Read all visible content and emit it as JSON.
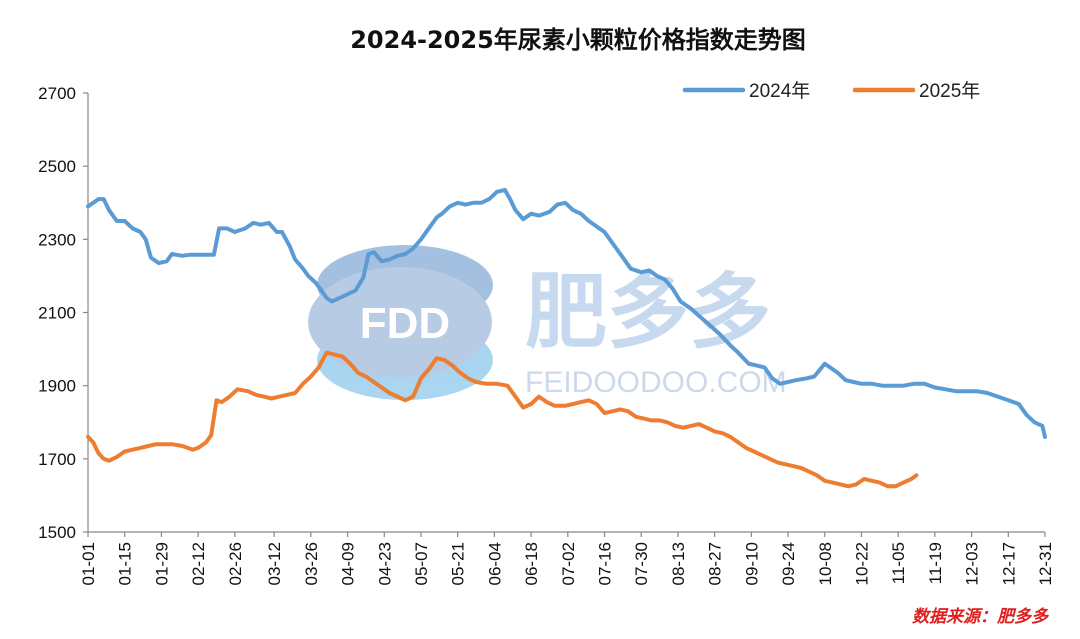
{
  "chart_data": {
    "type": "line",
    "title": "2024-2025年尿素小颗粒价格指数走势图",
    "ylim": [
      1500,
      2700
    ],
    "yticks": [
      "1500",
      "1700",
      "1900",
      "2100",
      "2300",
      "2500",
      "2700"
    ],
    "xticks": [
      "01-01",
      "01-15",
      "01-29",
      "02-12",
      "02-26",
      "03-12",
      "03-26",
      "04-09",
      "04-23",
      "05-07",
      "05-21",
      "06-04",
      "06-18",
      "07-02",
      "07-16",
      "07-30",
      "08-13",
      "08-27",
      "09-10",
      "09-24",
      "10-08",
      "10-22",
      "11-05",
      "11-19",
      "12-03",
      "12-17",
      "12-31"
    ],
    "legend_position": "top-right",
    "grid": false,
    "series": [
      {
        "name": "2024年",
        "color": "#5b9bd5",
        "x": [
          "01-01",
          "01-03",
          "01-05",
          "01-07",
          "01-09",
          "01-12",
          "01-15",
          "01-18",
          "01-21",
          "01-23",
          "01-25",
          "01-28",
          "01-31",
          "02-02",
          "02-06",
          "02-09",
          "02-12",
          "02-15",
          "02-18",
          "02-20",
          "02-23",
          "02-26",
          "03-01",
          "03-04",
          "03-07",
          "03-10",
          "03-13",
          "03-15",
          "03-18",
          "03-20",
          "03-23",
          "03-25",
          "03-28",
          "04-01",
          "04-03",
          "04-06",
          "04-09",
          "04-12",
          "04-15",
          "04-17",
          "04-19",
          "04-22",
          "04-25",
          "04-28",
          "05-01",
          "05-04",
          "05-07",
          "05-10",
          "05-13",
          "05-15",
          "05-18",
          "05-21",
          "05-24",
          "05-27",
          "05-30",
          "06-02",
          "06-05",
          "06-08",
          "06-10",
          "06-12",
          "06-15",
          "06-18",
          "06-21",
          "06-25",
          "06-28",
          "07-01",
          "07-04",
          "07-07",
          "07-10",
          "07-13",
          "07-16",
          "07-19",
          "07-23",
          "07-26",
          "07-30",
          "08-02",
          "08-05",
          "08-08",
          "08-11",
          "08-14",
          "08-18",
          "08-22",
          "08-26",
          "08-29",
          "09-02",
          "09-05",
          "09-09",
          "09-12",
          "09-15",
          "09-18",
          "09-21",
          "09-24",
          "09-27",
          "10-01",
          "10-04",
          "10-08",
          "10-10",
          "10-13",
          "10-16",
          "10-19",
          "10-22",
          "10-26",
          "10-30",
          "11-03",
          "11-07",
          "11-11",
          "11-15",
          "11-19",
          "11-23",
          "11-27",
          "12-01",
          "12-05",
          "12-09",
          "12-13",
          "12-17",
          "12-21",
          "12-24",
          "12-27",
          "12-30",
          "12-31"
        ],
        "values": [
          2390,
          2400,
          2410,
          2410,
          2380,
          2350,
          2350,
          2330,
          2320,
          2300,
          2250,
          2235,
          2240,
          2260,
          2255,
          2258,
          2258,
          2258,
          2258,
          2330,
          2330,
          2320,
          2330,
          2345,
          2340,
          2345,
          2320,
          2320,
          2280,
          2245,
          2220,
          2200,
          2180,
          2140,
          2130,
          2140,
          2150,
          2160,
          2195,
          2260,
          2265,
          2240,
          2245,
          2255,
          2260,
          2275,
          2300,
          2330,
          2360,
          2370,
          2390,
          2400,
          2395,
          2400,
          2400,
          2410,
          2430,
          2435,
          2410,
          2380,
          2355,
          2370,
          2365,
          2375,
          2395,
          2400,
          2380,
          2370,
          2350,
          2335,
          2320,
          2290,
          2250,
          2220,
          2210,
          2215,
          2200,
          2190,
          2165,
          2130,
          2110,
          2085,
          2060,
          2040,
          2010,
          1990,
          1960,
          1955,
          1950,
          1920,
          1905,
          1910,
          1915,
          1920,
          1925,
          1960,
          1950,
          1935,
          1915,
          1910,
          1905,
          1905,
          1900,
          1900,
          1900,
          1905,
          1905,
          1895,
          1890,
          1885,
          1885,
          1885,
          1880,
          1870,
          1860,
          1850,
          1820,
          1800,
          1790,
          1760
        ]
      },
      {
        "name": "2025年",
        "color": "#ed7d31",
        "x": [
          "01-01",
          "01-03",
          "01-05",
          "01-07",
          "01-09",
          "01-12",
          "01-15",
          "01-18",
          "01-21",
          "01-24",
          "01-27",
          "01-30",
          "02-02",
          "02-06",
          "02-10",
          "02-12",
          "02-15",
          "02-17",
          "02-19",
          "02-21",
          "02-24",
          "02-27",
          "03-02",
          "03-05",
          "03-08",
          "03-11",
          "03-14",
          "03-17",
          "03-20",
          "03-23",
          "03-26",
          "03-29",
          "04-01",
          "04-04",
          "04-07",
          "04-10",
          "04-13",
          "04-16",
          "04-19",
          "04-22",
          "04-25",
          "04-28",
          "05-01",
          "05-04",
          "05-07",
          "05-10",
          "05-13",
          "05-16",
          "05-19",
          "05-22",
          "05-25",
          "05-28",
          "06-01",
          "06-05",
          "06-09",
          "06-12",
          "06-15",
          "06-18",
          "06-21",
          "06-24",
          "06-27",
          "07-01",
          "07-04",
          "07-07",
          "07-10",
          "07-13",
          "07-16",
          "07-19",
          "07-22",
          "07-25",
          "07-28",
          "07-31",
          "08-03",
          "08-06",
          "08-09",
          "08-12",
          "08-15",
          "08-18",
          "08-21",
          "08-24",
          "08-27",
          "08-30",
          "09-02",
          "09-05",
          "09-08",
          "09-11",
          "09-14",
          "09-17",
          "09-20",
          "09-23",
          "09-26",
          "09-29",
          "10-02",
          "10-05",
          "10-08",
          "10-11",
          "10-14",
          "10-17",
          "10-20",
          "10-23",
          "10-26",
          "10-29",
          "11-01",
          "11-04",
          "11-07",
          "11-10",
          "11-12"
        ],
        "values": [
          1760,
          1745,
          1715,
          1700,
          1695,
          1705,
          1720,
          1725,
          1730,
          1735,
          1740,
          1740,
          1740,
          1735,
          1725,
          1730,
          1745,
          1765,
          1860,
          1855,
          1870,
          1890,
          1885,
          1875,
          1870,
          1865,
          1870,
          1875,
          1880,
          1905,
          1925,
          1950,
          1990,
          1985,
          1980,
          1960,
          1935,
          1925,
          1910,
          1895,
          1880,
          1870,
          1860,
          1870,
          1920,
          1945,
          1975,
          1970,
          1955,
          1935,
          1920,
          1910,
          1905,
          1905,
          1900,
          1870,
          1840,
          1850,
          1870,
          1855,
          1845,
          1845,
          1850,
          1855,
          1860,
          1850,
          1825,
          1830,
          1835,
          1830,
          1815,
          1810,
          1805,
          1805,
          1800,
          1790,
          1785,
          1790,
          1795,
          1785,
          1775,
          1770,
          1760,
          1745,
          1730,
          1720,
          1710,
          1700,
          1690,
          1685,
          1680,
          1675,
          1665,
          1655,
          1640,
          1635,
          1630,
          1625,
          1630,
          1645,
          1640,
          1635,
          1625,
          1625,
          1635,
          1645,
          1655
        ]
      }
    ]
  },
  "watermark": {
    "logo_text": "FDD",
    "name_cn": "肥多多",
    "domain": "FEIDOODOO.COM",
    "color": "#a8c4e4"
  },
  "source_note": "数据来源：肥多多"
}
